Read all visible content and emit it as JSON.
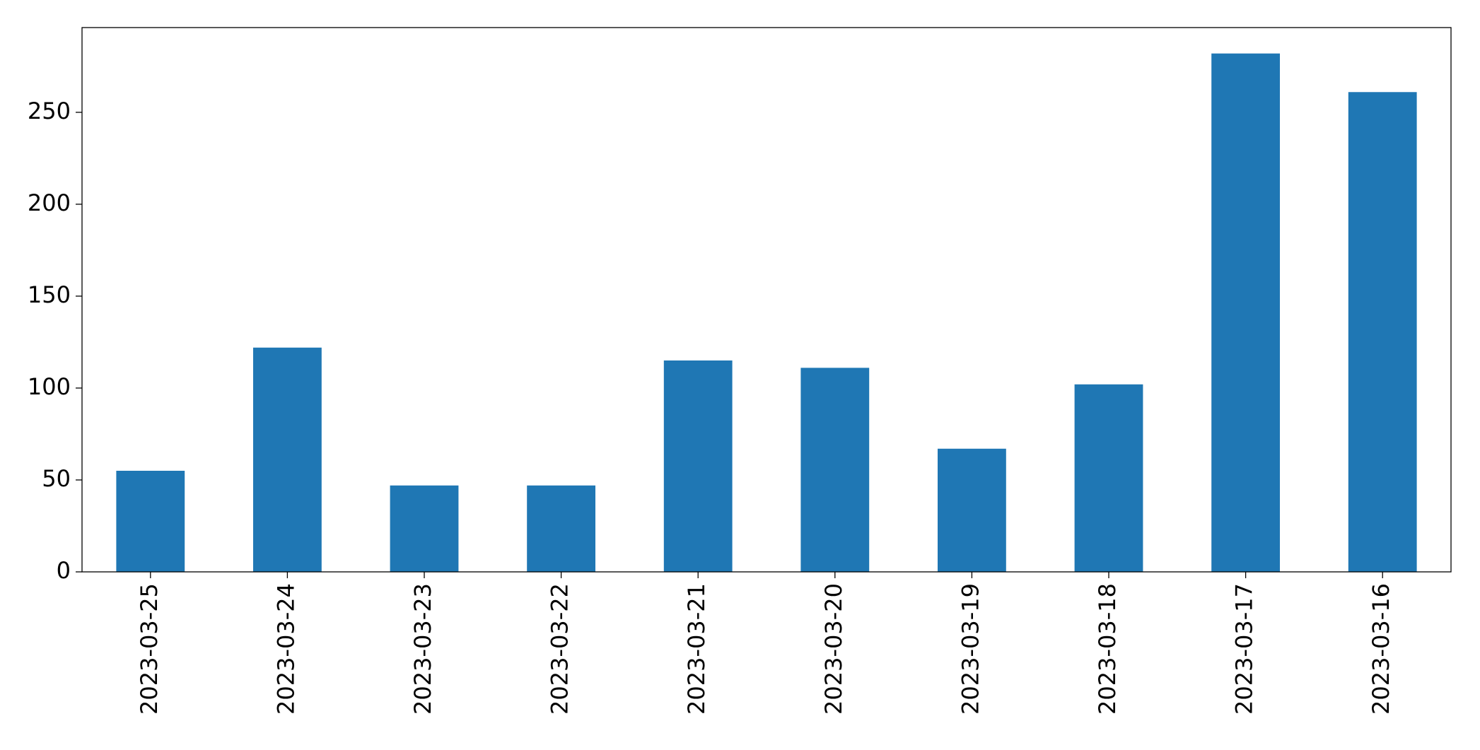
{
  "chart_data": {
    "type": "bar",
    "categories": [
      "2023-03-25",
      "2023-03-24",
      "2023-03-23",
      "2023-03-22",
      "2023-03-21",
      "2023-03-20",
      "2023-03-19",
      "2023-03-18",
      "2023-03-17",
      "2023-03-16"
    ],
    "values": [
      55,
      122,
      47,
      47,
      115,
      111,
      67,
      102,
      282,
      261
    ],
    "color": "#1f77b4",
    "ylim": [
      0,
      296.1
    ],
    "yticks": [
      0,
      50,
      100,
      150,
      200,
      250
    ],
    "grid": false
  }
}
